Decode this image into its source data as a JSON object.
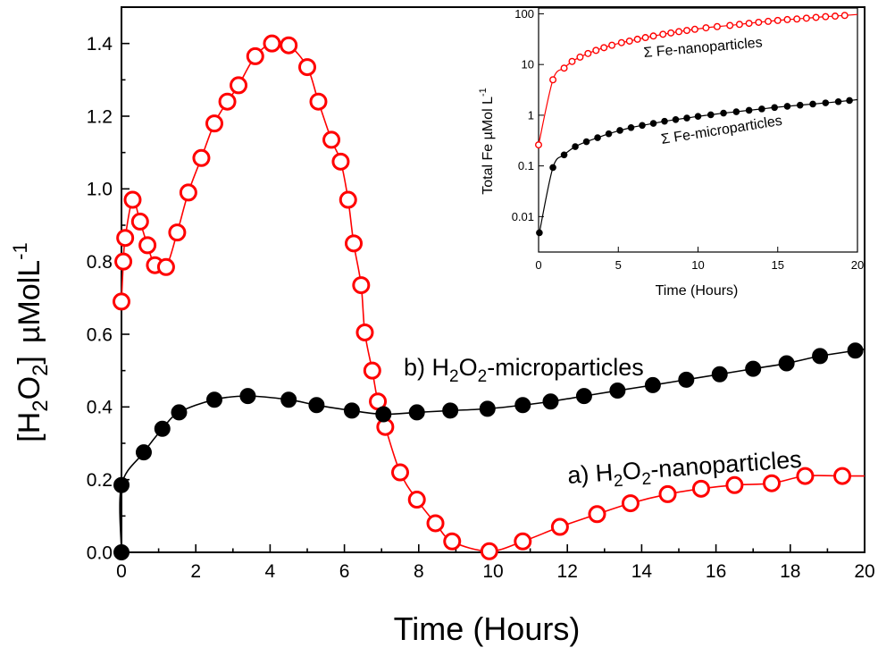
{
  "chart_data": [
    {
      "type": "scatter",
      "panel": "main",
      "xlabel": "Time (Hours)",
      "ylabel_parts": {
        "open": "[H",
        "sub1": "2",
        "mid": "O",
        "sub2": "2",
        "close": "]",
        "unit": "µMolL",
        "sup": "-1"
      },
      "xlim": [
        0,
        20
      ],
      "ylim": [
        0,
        1.5
      ],
      "xticks": [
        0,
        2,
        4,
        6,
        8,
        10,
        12,
        14,
        16,
        18,
        20
      ],
      "xtick_labels": [
        "0",
        "2",
        "4",
        "6",
        "8",
        "10",
        "12",
        "14",
        "16",
        "18",
        "20"
      ],
      "yticks": [
        0,
        0.2,
        0.4,
        0.6,
        0.8,
        1.0,
        1.2,
        1.4
      ],
      "ytick_labels": [
        "0.0",
        "0.2",
        "0.4",
        "0.6",
        "0.8",
        "1.0",
        "1.2",
        "1.4"
      ],
      "series": [
        {
          "name": "a) H2O2-nanoparticles",
          "label_parts": {
            "prefix": "a) H",
            "sub1": "2",
            "mid": "O",
            "sub2": "2",
            "suffix": "-nanoparticles"
          },
          "color": "#ff0000",
          "marker": "open-circle",
          "x": [
            0.0,
            0.05,
            0.1,
            0.3,
            0.5,
            0.7,
            0.9,
            1.2,
            1.5,
            1.8,
            2.15,
            2.5,
            2.85,
            3.15,
            3.6,
            4.05,
            4.5,
            5.0,
            5.3,
            5.65,
            5.9,
            6.1,
            6.25,
            6.45,
            6.55,
            6.75,
            6.9,
            7.1,
            7.5,
            7.95,
            8.45,
            8.9,
            9.9,
            10.8,
            11.8,
            12.8,
            13.7,
            14.7,
            15.6,
            16.5,
            17.5,
            18.4,
            19.4
          ],
          "y": [
            0.69,
            0.8,
            0.865,
            0.97,
            0.91,
            0.845,
            0.79,
            0.785,
            0.88,
            0.99,
            1.085,
            1.18,
            1.24,
            1.285,
            1.365,
            1.4,
            1.395,
            1.335,
            1.24,
            1.135,
            1.075,
            0.97,
            0.85,
            0.735,
            0.605,
            0.5,
            0.415,
            0.345,
            0.22,
            0.145,
            0.08,
            0.03,
            0.003,
            0.03,
            0.07,
            0.105,
            0.135,
            0.16,
            0.175,
            0.185,
            0.19,
            0.21,
            0.21
          ]
        },
        {
          "name": "b) H2O2-microparticles",
          "label_parts": {
            "prefix": "b) H",
            "sub1": "2",
            "mid": "O",
            "sub2": "2",
            "suffix": "-microparticles"
          },
          "color": "#000000",
          "marker": "filled-circle",
          "x": [
            0.0,
            0.0,
            0.6,
            1.1,
            1.55,
            2.5,
            3.4,
            4.5,
            5.25,
            6.2,
            7.05,
            7.95,
            8.85,
            9.85,
            10.8,
            11.55,
            12.45,
            13.35,
            14.3,
            15.2,
            16.1,
            17.0,
            17.9,
            18.8,
            19.75
          ],
          "y": [
            0.0,
            0.185,
            0.275,
            0.34,
            0.385,
            0.42,
            0.43,
            0.42,
            0.405,
            0.39,
            0.38,
            0.385,
            0.39,
            0.395,
            0.405,
            0.415,
            0.43,
            0.445,
            0.46,
            0.475,
            0.49,
            0.505,
            0.52,
            0.54,
            0.555
          ]
        }
      ]
    },
    {
      "type": "scatter",
      "panel": "inset",
      "xlabel": "Time (Hours)",
      "ylabel_parts": {
        "text": "Total Fe µMol L",
        "sup": "-1"
      },
      "yscale": "log",
      "xlim": [
        0,
        20
      ],
      "ylim": [
        0.002,
        130
      ],
      "xticks": [
        0,
        5,
        10,
        15,
        20
      ],
      "xtick_labels": [
        "0",
        "5",
        "10",
        "15",
        "20"
      ],
      "yticks": [
        0.01,
        0.1,
        1,
        10,
        100
      ],
      "ytick_labels": [
        "0.01",
        "0.1",
        "1",
        "10",
        "100"
      ],
      "series": [
        {
          "name": "Σ Fe-nanoparticles",
          "color": "#ff0000",
          "marker": "open-circle",
          "x": [
            0.0,
            0.9,
            1.6,
            2.1,
            2.6,
            3.1,
            3.6,
            4.1,
            4.6,
            5.2,
            5.7,
            6.2,
            6.7,
            7.2,
            7.8,
            8.3,
            8.8,
            9.3,
            9.8,
            10.5,
            11.2,
            12.0,
            12.6,
            13.2,
            13.8,
            14.4,
            15.0,
            15.6,
            16.2,
            16.8,
            17.4,
            18.0,
            18.6,
            19.2
          ],
          "y": [
            0.26,
            5.0,
            8.5,
            11.5,
            14.0,
            16.5,
            19.0,
            21.5,
            24.0,
            27.0,
            29.0,
            31.5,
            34.0,
            36.5,
            39.5,
            42.0,
            44.5,
            47.0,
            49.5,
            53.0,
            56.0,
            59.0,
            62.0,
            65.0,
            68.0,
            71.0,
            74.0,
            77.0,
            79.0,
            82.0,
            85.0,
            88.0,
            90.0,
            93.0
          ]
        },
        {
          "name": "Σ Fe-microparticles",
          "color": "#000000",
          "marker": "filled-circle",
          "x": [
            0.05,
            0.9,
            1.6,
            2.3,
            3.0,
            3.7,
            4.4,
            5.1,
            5.8,
            6.5,
            7.2,
            7.9,
            8.6,
            9.3,
            10.0,
            10.8,
            11.6,
            12.4,
            13.2,
            14.0,
            14.8,
            15.6,
            16.4,
            17.2,
            18.0,
            18.8,
            19.5
          ],
          "y": [
            0.0048,
            0.093,
            0.165,
            0.24,
            0.3,
            0.36,
            0.43,
            0.5,
            0.57,
            0.63,
            0.69,
            0.76,
            0.82,
            0.88,
            0.95,
            1.02,
            1.1,
            1.17,
            1.25,
            1.33,
            1.42,
            1.5,
            1.58,
            1.66,
            1.75,
            1.85,
            1.95
          ]
        }
      ]
    }
  ]
}
